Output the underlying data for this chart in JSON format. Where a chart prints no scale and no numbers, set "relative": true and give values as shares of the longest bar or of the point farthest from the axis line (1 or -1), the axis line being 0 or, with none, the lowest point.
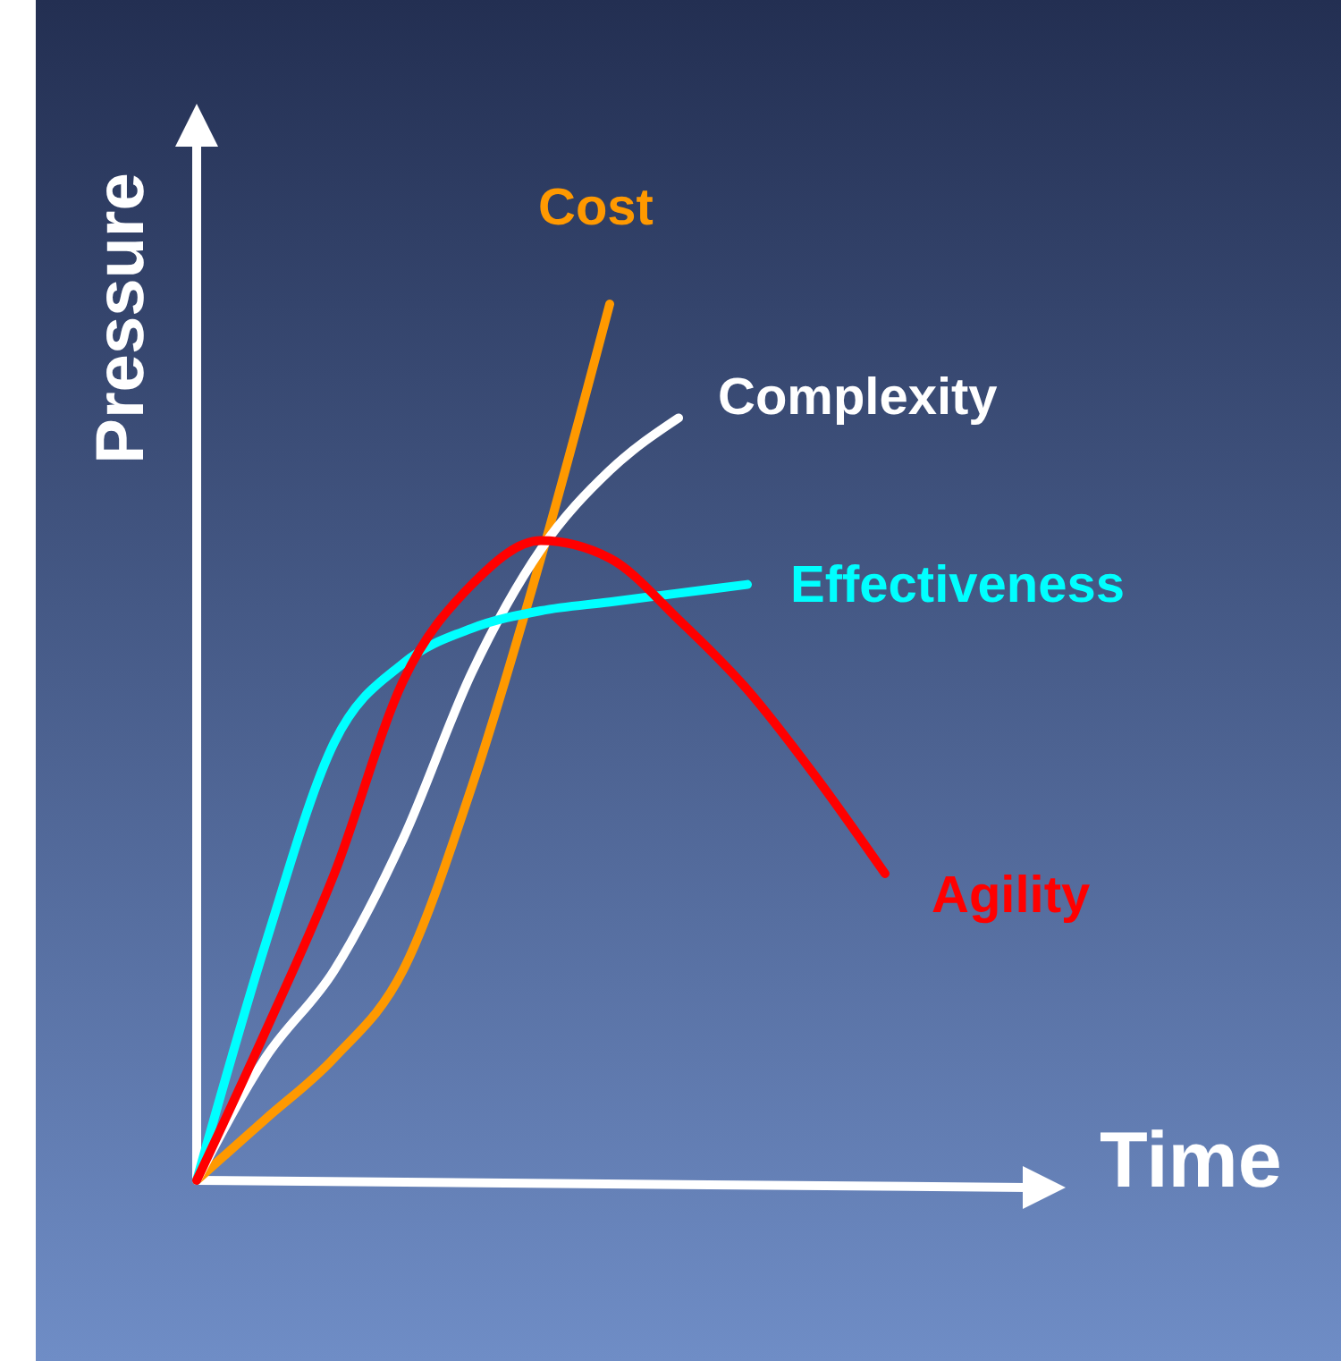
{
  "chart_data": {
    "type": "line",
    "relative": true,
    "xlabel": "Time",
    "ylabel": "Pressure",
    "marker": "none",
    "line_style": "solid",
    "categories": [
      null,
      null,
      null,
      null,
      null,
      null,
      null,
      null,
      null,
      null,
      null,
      null,
      null
    ],
    "series": [
      {
        "name": "Cost",
        "color": "#ff9900",
        "values": [
          0,
          0.07,
          0.14,
          0.24,
          0.45,
          0.71,
          1,
          null,
          null,
          null,
          null,
          null,
          null
        ]
      },
      {
        "name": "Complexity",
        "color": "#ffffff",
        "values": [
          0,
          0.14,
          0.24,
          0.39,
          0.58,
          0.72,
          0.81,
          0.87,
          null,
          null,
          null,
          null,
          null
        ]
      },
      {
        "name": "Effectiveness",
        "color": "#00ffff",
        "values": [
          0,
          0.27,
          0.5,
          0.59,
          0.63,
          0.65,
          0.66,
          0.67,
          0.68,
          null,
          null,
          null,
          null
        ]
      },
      {
        "name": "Agility",
        "color": "#ff0000",
        "values": [
          0,
          0.17,
          0.35,
          0.57,
          0.68,
          0.73,
          0.71,
          0.64,
          0.56,
          0.46,
          0.35,
          null,
          null
        ]
      }
    ]
  }
}
